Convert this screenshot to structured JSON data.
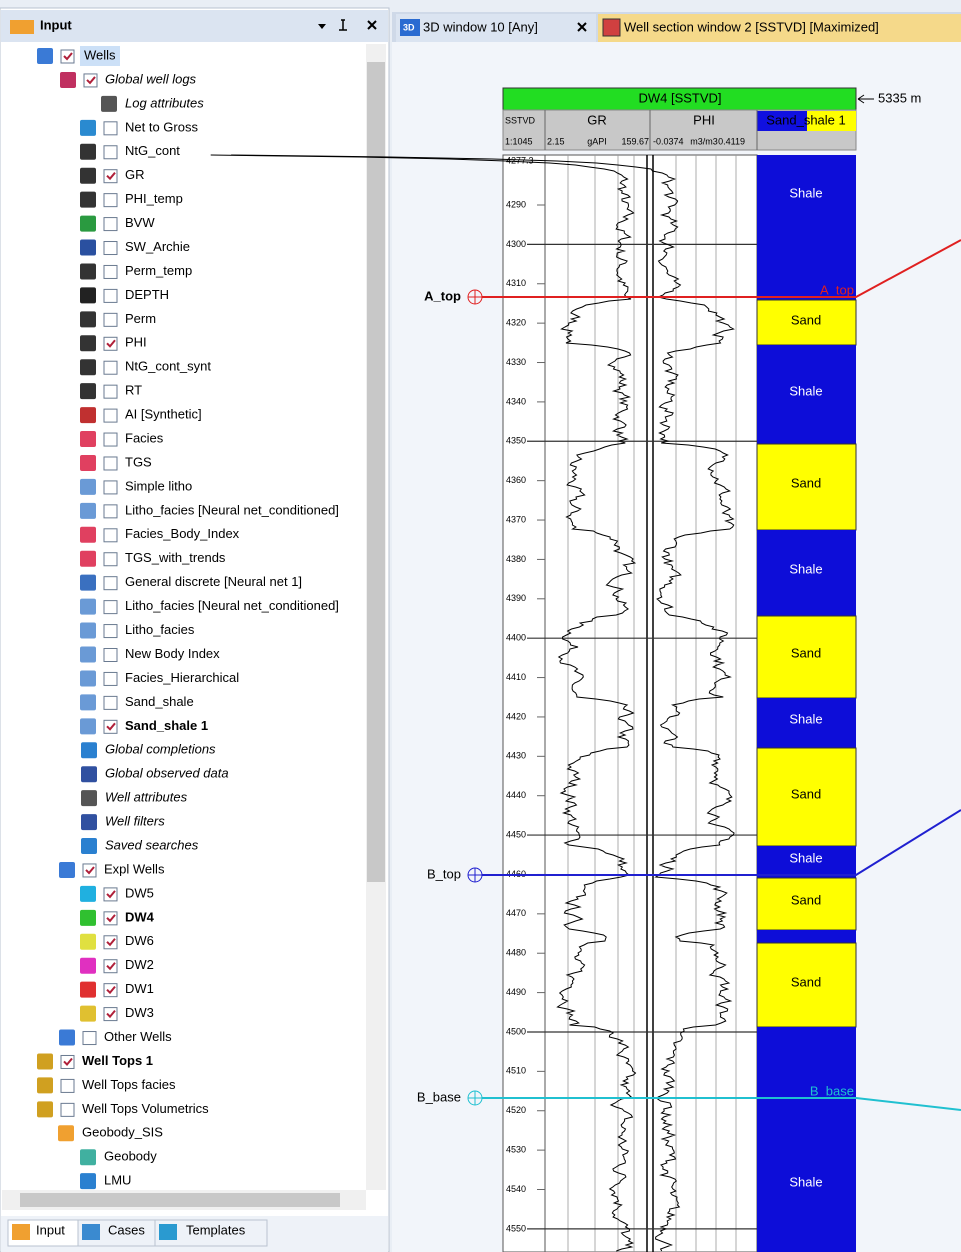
{
  "left_panel": {
    "title": "Input",
    "tree": [
      "Wells",
      "Global well logs",
      "Log attributes",
      "Net to Gross",
      "NtG_cont",
      "GR",
      "PHI_temp",
      "BVW",
      "SW_Archie",
      "Perm_temp",
      "DEPTH",
      "Perm",
      "PHI",
      "NtG_cont_synt",
      "RT",
      "AI [Synthetic]",
      "Facies",
      "TGS",
      "Simple litho",
      "Litho_facies [Neural net_conditioned]",
      "Facies_Body_Index",
      "TGS_with_trends",
      "General discrete [Neural net 1]",
      "Litho_facies [Neural net_conditioned]",
      "Litho_facies",
      "New Body Index",
      "Facies_Hierarchical",
      "Sand_shale",
      "Sand_shale 1",
      "Global completions",
      "Global observed data",
      "Well attributes",
      "Well filters",
      "Saved searches",
      "Expl Wells",
      "DW5",
      "DW4",
      "DW6",
      "DW2",
      "DW1",
      "DW3",
      "Other Wells",
      "Well Tops 1",
      "Well Tops facies",
      "Well Tops Volumetrics",
      "Geobody_SIS",
      "Geobody",
      "LMU"
    ],
    "tabs": [
      "Input",
      "Cases",
      "Templates"
    ]
  },
  "right_panel": {
    "tab_icon": "3D",
    "tabs": [
      "3D window 10 [Any]",
      "Well section window 2 [SSTVD] [Maximized]"
    ],
    "well": {
      "title": "DW4 [SSTVD]",
      "length": "5335 m",
      "track_titles": [
        "SSTVD",
        "GR",
        "PHI",
        "Sand_shale 1"
      ],
      "scale": "1:1045",
      "gr_min": "2.15",
      "gr_unit": "gAPI",
      "gr_max": "159.67",
      "phi_min": "-0.0374",
      "phi_unit": "m3/m3",
      "phi_max": "0.4119",
      "depths": [
        4277.3,
        4290,
        4300,
        4310,
        4320,
        4330,
        4340,
        4350,
        4360,
        4370,
        4380,
        4390,
        4400,
        4410,
        4420,
        4430,
        4440,
        4450,
        4460,
        4470,
        4480,
        4490,
        4500,
        4510,
        4520,
        4530,
        4540,
        4550
      ],
      "tops": [
        "A_top",
        "B_top",
        "B_base"
      ],
      "top_track_labels": [
        "A_top",
        "B_base"
      ],
      "facies_labels": [
        "Shale",
        "Sand",
        "Shale",
        "Sand",
        "Shale",
        "Sand",
        "Shale",
        "Sand",
        "Shale",
        "Sand",
        "Sand",
        "Shale"
      ]
    }
  }
}
